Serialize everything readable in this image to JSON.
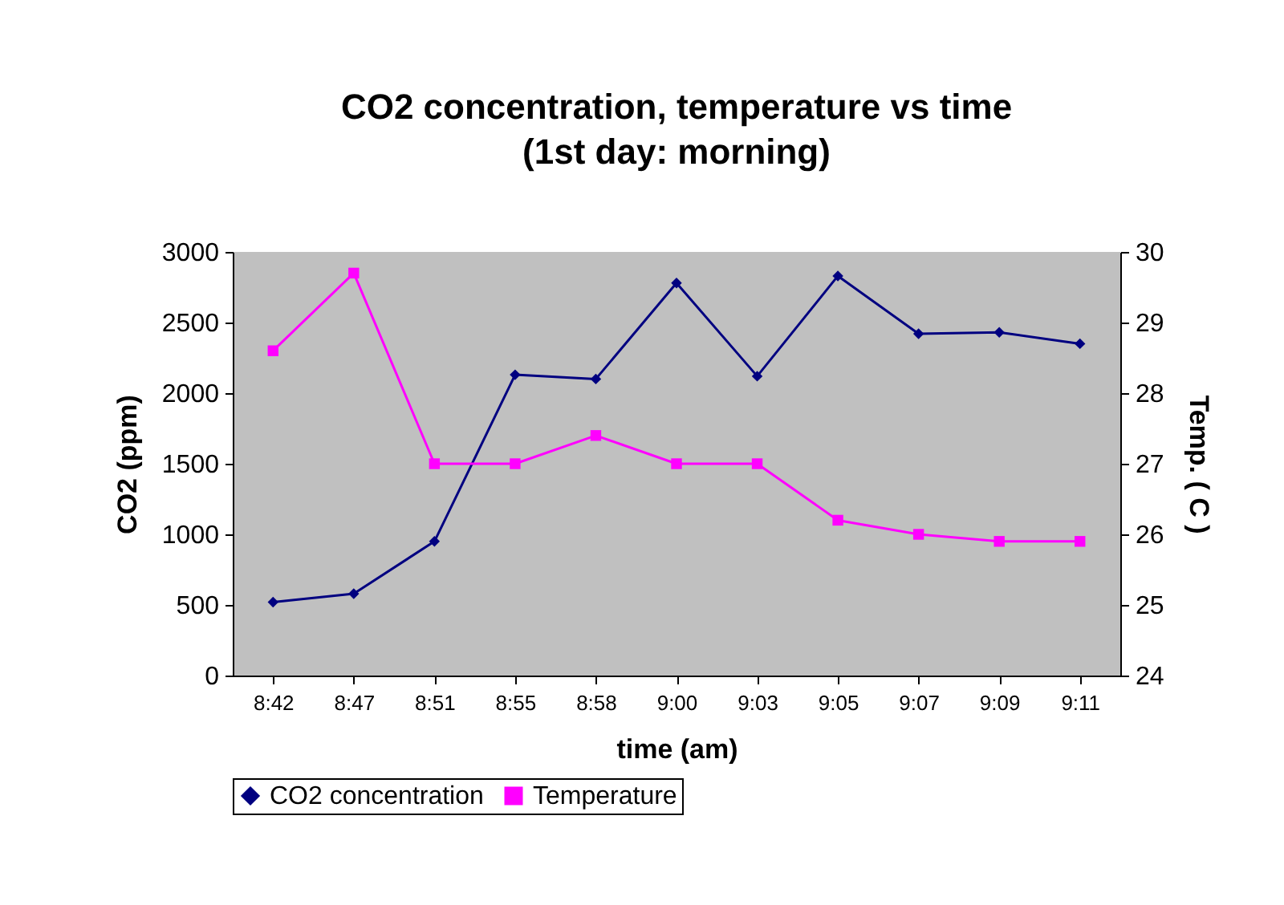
{
  "chart_data": {
    "type": "line",
    "title": "CO2 concentration, temperature vs time",
    "subtitle": "(1st day: morning)",
    "xlabel": "time (am)",
    "ylabel": "CO2 (ppm)",
    "y2label": "Temp. ( C )",
    "categories": [
      "8:42",
      "8:47",
      "8:51",
      "8:55",
      "8:58",
      "9:00",
      "9:03",
      "9:05",
      "9:07",
      "9:09",
      "9:11"
    ],
    "series": [
      {
        "name": "CO2 concentration",
        "color": "#000080",
        "marker": "diamond",
        "values": [
          520,
          580,
          950,
          2130,
          2100,
          2780,
          2120,
          2830,
          2420,
          2430,
          2350
        ]
      },
      {
        "name": "Temperature",
        "color": "#ff00ff",
        "marker": "square",
        "axis": "y2",
        "values": [
          28.6,
          29.7,
          27.0,
          27.0,
          27.4,
          27.0,
          27.0,
          26.2,
          26.0,
          25.9,
          25.9
        ]
      }
    ],
    "ylim": [
      0,
      3000
    ],
    "yticks": [
      0,
      500,
      1000,
      1500,
      2000,
      2500,
      3000
    ],
    "y2lim": [
      24,
      30
    ],
    "y2ticks": [
      24,
      25,
      26,
      27,
      28,
      29,
      30
    ],
    "grid": false,
    "legend": "bottom",
    "line_style": "solid"
  }
}
